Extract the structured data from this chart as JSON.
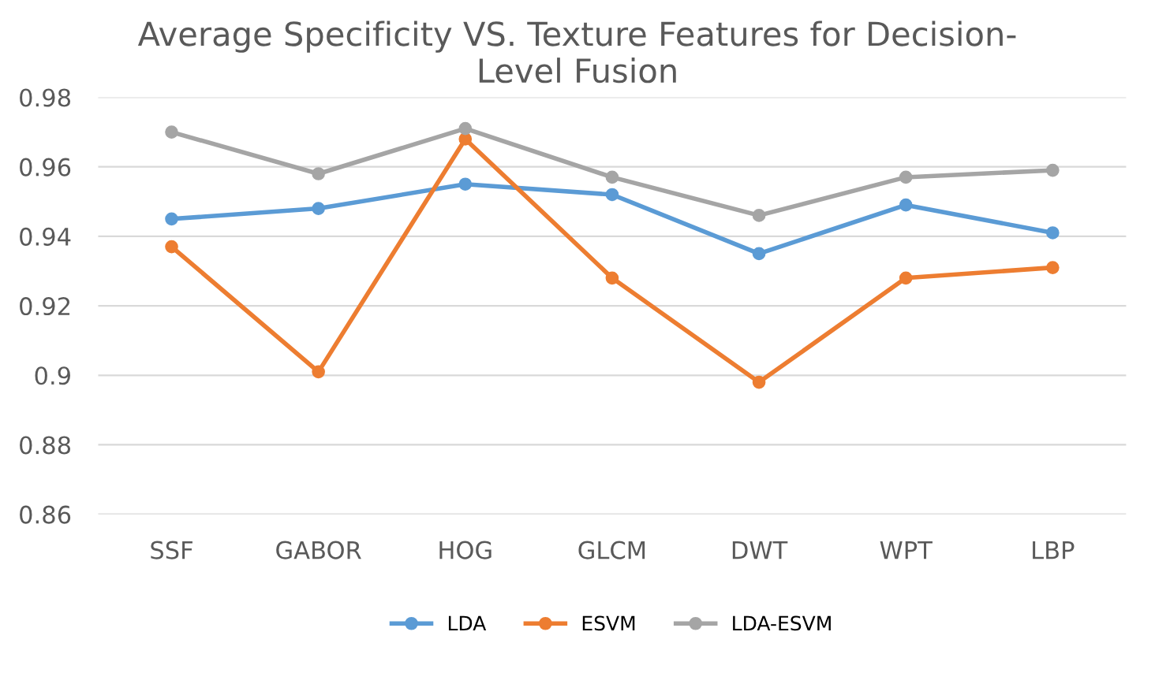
{
  "chart_data": {
    "type": "line",
    "title": "Average Specificity VS. Texture Features for Decision-\nLevel Fusion",
    "categories": [
      "SSF",
      "GABOR",
      "HOG",
      "GLCM",
      "DWT",
      "WPT",
      "LBP"
    ],
    "series": [
      {
        "name": "LDA",
        "color": "#5b9bd5",
        "values": [
          0.945,
          0.948,
          0.955,
          0.952,
          0.935,
          0.949,
          0.941
        ]
      },
      {
        "name": "ESVM",
        "color": "#ed7d31",
        "values": [
          0.937,
          0.901,
          0.968,
          0.928,
          0.898,
          0.928,
          0.931
        ]
      },
      {
        "name": "LDA-ESVM",
        "color": "#a5a5a5",
        "values": [
          0.97,
          0.958,
          0.971,
          0.957,
          0.946,
          0.957,
          0.959
        ]
      }
    ],
    "ylim": [
      0.86,
      0.98
    ],
    "yticks": [
      0.86,
      0.88,
      0.9,
      0.92,
      0.94,
      0.96,
      0.98
    ],
    "grid": "y",
    "legend": "bottom",
    "marker": "circle",
    "line_style": "solid"
  }
}
